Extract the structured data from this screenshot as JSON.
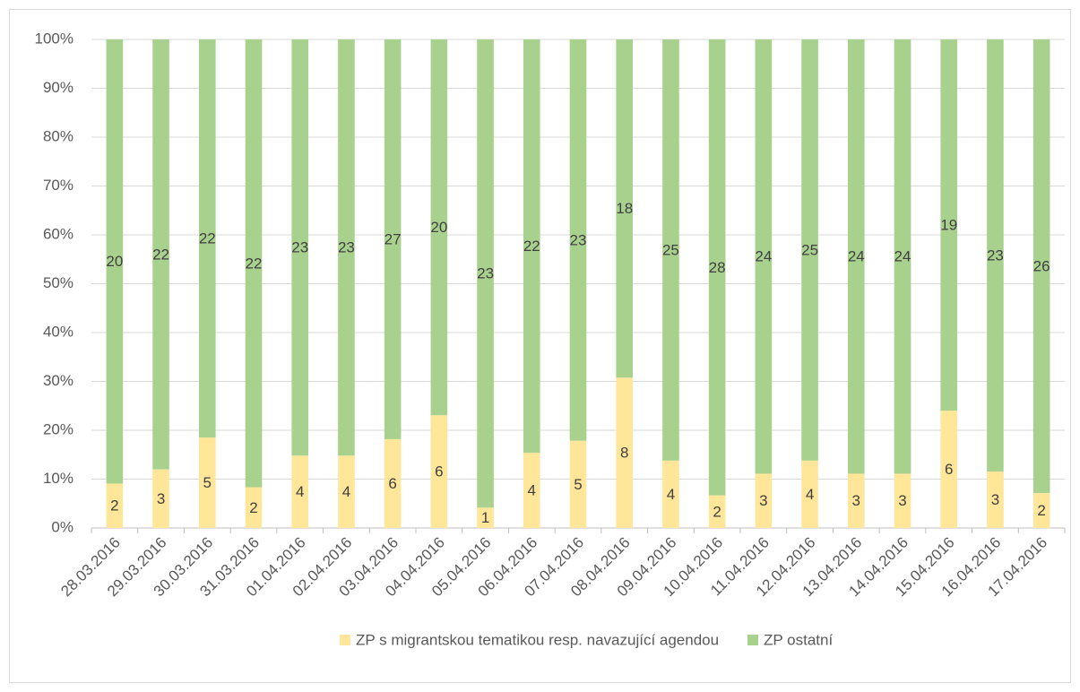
{
  "chart_data": {
    "type": "bar",
    "stacking": "percent",
    "categories": [
      "28.03.2016",
      "29.03.2016",
      "30.03.2016",
      "31.03.2016",
      "01.04.2016",
      "02.04.2016",
      "03.04.2016",
      "04.04.2016",
      "05.04.2016",
      "06.04.2016",
      "07.04.2016",
      "08.04.2016",
      "09.04.2016",
      "10.04.2016",
      "11.04.2016",
      "12.04.2016",
      "13.04.2016",
      "14.04.2016",
      "15.04.2016",
      "16.04.2016",
      "17.04.2016"
    ],
    "series": [
      {
        "name": "ZP s migrantskou tematikou resp. navazující agendou",
        "color": "#ffe699",
        "values": [
          2,
          3,
          5,
          2,
          4,
          4,
          6,
          6,
          1,
          4,
          5,
          8,
          4,
          2,
          3,
          4,
          3,
          3,
          6,
          3,
          2
        ]
      },
      {
        "name": "ZP ostatní",
        "color": "#a9d18e",
        "values": [
          20,
          22,
          22,
          22,
          23,
          23,
          27,
          20,
          23,
          22,
          23,
          18,
          25,
          28,
          24,
          25,
          24,
          24,
          19,
          23,
          26
        ]
      }
    ],
    "ylim": [
      0,
      100
    ],
    "yticks": [
      {
        "value": 0,
        "label": "0%"
      },
      {
        "value": 10,
        "label": "10%"
      },
      {
        "value": 20,
        "label": "20%"
      },
      {
        "value": 30,
        "label": "30%"
      },
      {
        "value": 40,
        "label": "40%"
      },
      {
        "value": 50,
        "label": "50%"
      },
      {
        "value": 60,
        "label": "60%"
      },
      {
        "value": 70,
        "label": "70%"
      },
      {
        "value": 80,
        "label": "80%"
      },
      {
        "value": 90,
        "label": "90%"
      },
      {
        "value": 100,
        "label": "100%"
      }
    ],
    "grid": true,
    "legend": "bottom"
  }
}
